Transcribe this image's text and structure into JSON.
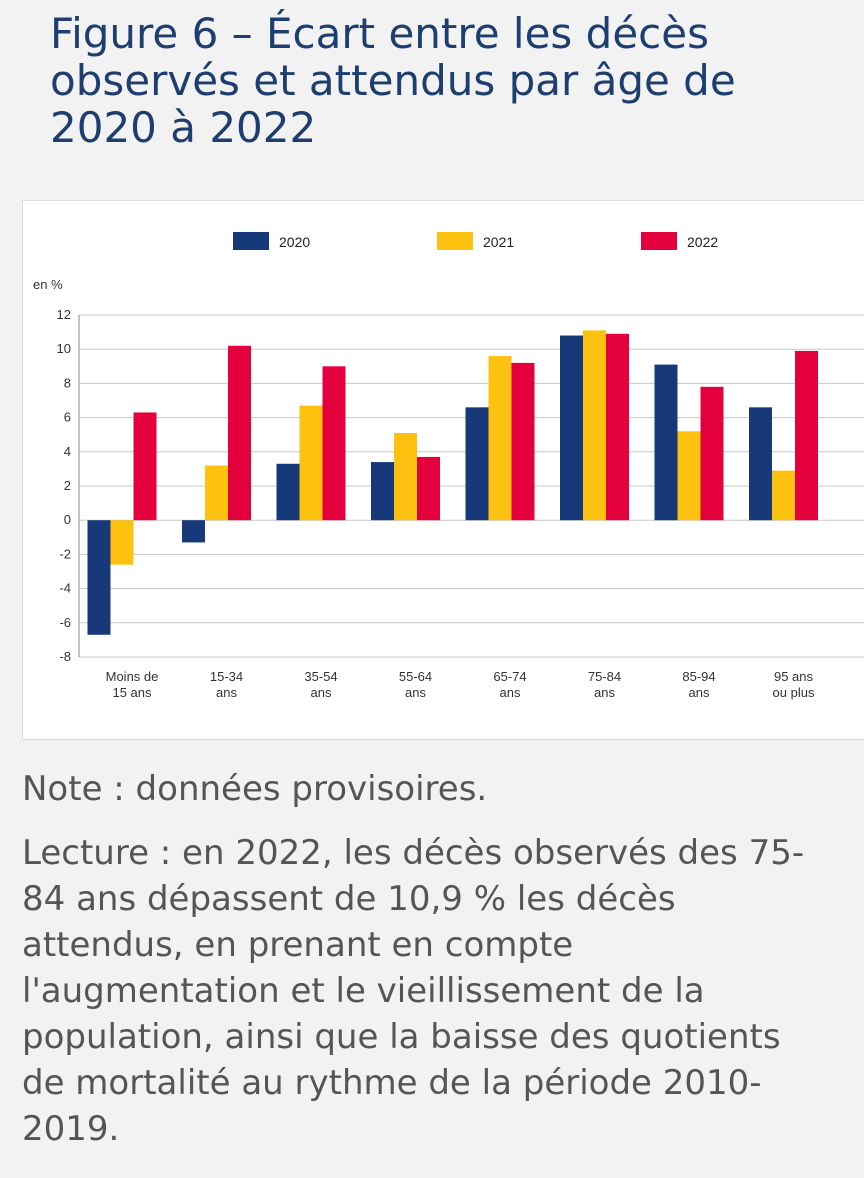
{
  "title": {
    "lines": [
      "Figure 6 – Écart entre les décès",
      "observés et attendus par âge de",
      "2020 à 2022"
    ]
  },
  "note": "Note : données provisoires.",
  "reading": {
    "lines": [
      "Lecture : en 2022, les décès observés des 75-",
      "84 ans dépassent de 10,9 % les décès",
      "attendus, en prenant en compte",
      "l'augmentation et le vieillissement de la",
      "population, ainsi que la baisse des quotients",
      "de mortalité au rythme de la période 2010-",
      "2019."
    ]
  },
  "chart_data": {
    "type": "bar",
    "ylabel": "en %",
    "ylim": [
      -8,
      12
    ],
    "yticks": [
      12,
      10,
      8,
      6,
      4,
      2,
      0,
      -2,
      -4,
      -6,
      -8
    ],
    "grid": true,
    "legend_position": "top",
    "categories": [
      [
        "Moins de",
        "15 ans"
      ],
      [
        "15-34",
        "ans"
      ],
      [
        "35-54",
        "ans"
      ],
      [
        "55-64",
        "ans"
      ],
      [
        "65-74",
        "ans"
      ],
      [
        "75-84",
        "ans"
      ],
      [
        "85-94",
        "ans"
      ],
      [
        "95 ans",
        "ou plus"
      ]
    ],
    "series": [
      {
        "name": "2020",
        "color": "#17397a",
        "values": [
          -6.7,
          -1.3,
          3.3,
          3.4,
          6.6,
          10.8,
          9.1,
          6.6
        ]
      },
      {
        "name": "2021",
        "color": "#fdc20f",
        "values": [
          -2.6,
          3.2,
          6.7,
          5.1,
          9.6,
          11.1,
          5.2,
          2.9
        ]
      },
      {
        "name": "2022",
        "color": "#e4003d",
        "values": [
          6.3,
          10.2,
          9.0,
          3.7,
          9.2,
          10.9,
          7.8,
          9.9
        ]
      }
    ]
  }
}
